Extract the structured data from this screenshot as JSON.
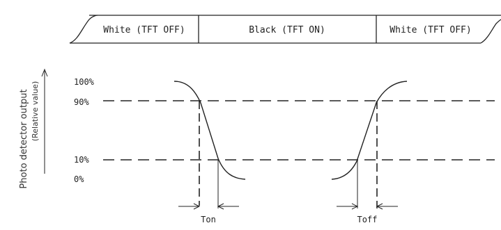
{
  "state_bar": {
    "segments": [
      {
        "label": "White (TFT OFF)"
      },
      {
        "label": "Black (TFT ON)"
      },
      {
        "label": "White (TFT OFF)"
      }
    ]
  },
  "y_axis": {
    "label": "Photo detector output",
    "sublabel": "(Relative value)"
  },
  "levels": [
    {
      "label": "100%"
    },
    {
      "label": "90%"
    },
    {
      "label": "10%"
    },
    {
      "label": "0%"
    }
  ],
  "timings": {
    "on_label": "Ton",
    "off_label": "Toff"
  }
}
